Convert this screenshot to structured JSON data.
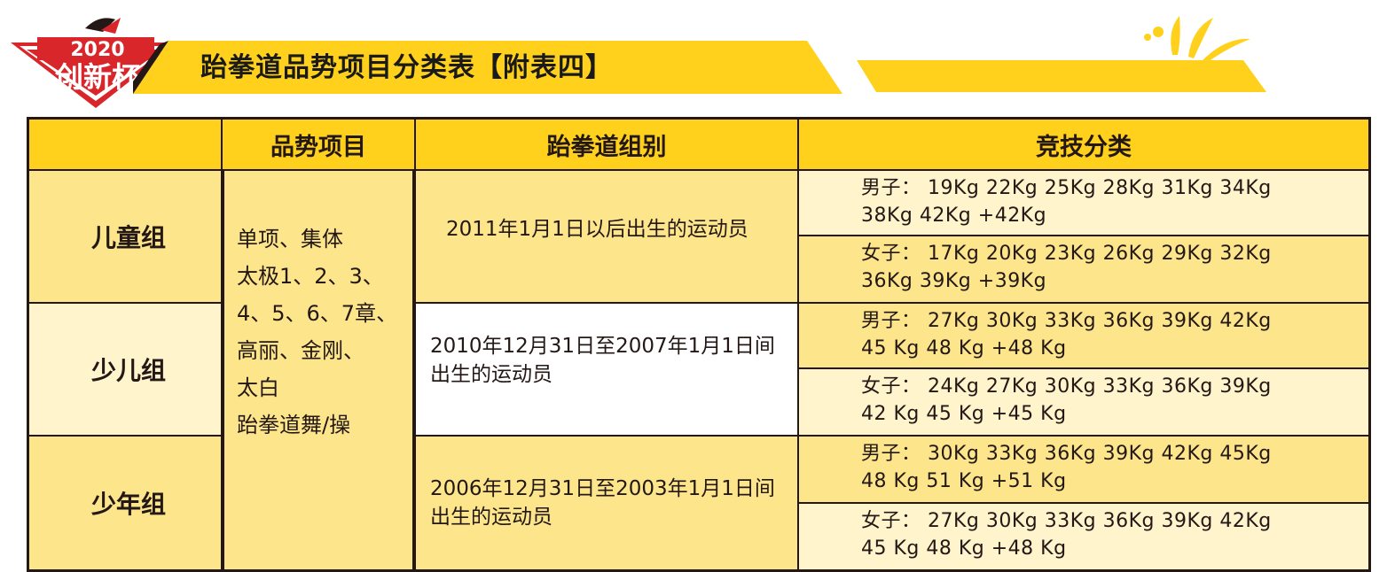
{
  "logo": {
    "year": "2020",
    "name": "创新杯"
  },
  "title": "跆拳道品势项目分类表【附表四】",
  "headers": {
    "blank": "",
    "poomsae": "品势项目",
    "age_group": "跆拳道组别",
    "category": "竞技分类"
  },
  "groups": [
    {
      "name": "儿童组",
      "age": "2011年1月1日以后出生的运动员",
      "male": {
        "line1": "男子： 19Kg  22Kg  25Kg  28Kg  31Kg  34Kg",
        "line2": "38Kg   42Kg  +42Kg"
      },
      "female": {
        "line1": "女子： 17Kg  20Kg  23Kg  26Kg  29Kg  32Kg",
        "line2": "36Kg  39Kg  +39Kg"
      }
    },
    {
      "name": "少儿组",
      "age": "2010年12月31日至2007年1月1日间出生的运动员",
      "male": {
        "line1": "男子： 27Kg  30Kg  33Kg  36Kg  39Kg  42Kg",
        "line2": "45 Kg  48 Kg  +48 Kg"
      },
      "female": {
        "line1": "女子： 24Kg  27Kg  30Kg  33Kg  36Kg  39Kg",
        "line2": "42 Kg  45 Kg  +45 Kg"
      }
    },
    {
      "name": "少年组",
      "age": "2006年12月31日至2003年1月1日间出生的运动员",
      "male": {
        "line1": "男子： 30Kg  33Kg  36Kg  39Kg  42Kg  45Kg",
        "line2": "48 Kg  51 Kg  +51 Kg"
      },
      "female": {
        "line1": "女子： 27Kg  30Kg  33Kg  36Kg  39Kg  42Kg",
        "line2": "45 Kg  48 Kg  +48 Kg"
      }
    }
  ],
  "poomsae_items": [
    "单项、集体",
    "太极1、2、3、",
    "4、5、6、7章、",
    "高丽、金刚、",
    "太白",
    "跆拳道舞/操"
  ],
  "colors": {
    "header_yellow": "#ffd11c",
    "cell_yellow": "#fde58b",
    "cell_light": "#fff4cc",
    "logo_red": "#d8262a",
    "border": "#231815"
  }
}
